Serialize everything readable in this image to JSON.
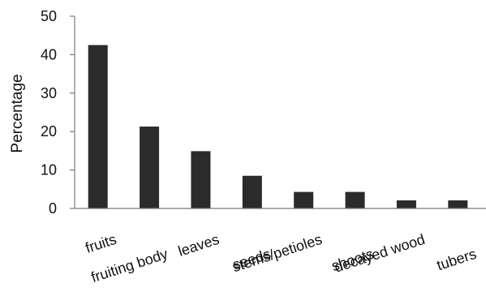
{
  "chart_data": {
    "type": "bar",
    "ylabel": "Percentage",
    "xlabel": "",
    "ylim": [
      0,
      50
    ],
    "yticks": [
      0,
      10,
      20,
      30,
      40,
      50
    ],
    "grid": false,
    "legend": "none",
    "bar_color": "#2b2b2b",
    "axis_color": "#7a7a7a",
    "categories": [
      "fruits",
      "fruiting body",
      "leaves",
      "seeds",
      "stems/petioles",
      "shoots",
      "decayed wood",
      "tubers"
    ],
    "values": [
      42.5,
      21.3,
      14.9,
      8.5,
      4.3,
      4.3,
      2.1,
      2.1
    ]
  }
}
